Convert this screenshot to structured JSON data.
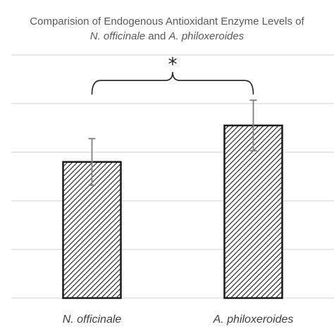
{
  "chart_data": {
    "type": "bar",
    "title_line1": "Comparision of Endogenous Antioxidant Enzyme Levels of",
    "title_line2": {
      "species1": "N. officinale",
      "connector": "and",
      "species2": "A. philoxeroides"
    },
    "categories": [
      "N. officinale",
      "A. philoxeroides"
    ],
    "values": [
      2.8,
      3.55
    ],
    "error": [
      0.48,
      0.52
    ],
    "ylim": [
      0,
      5
    ],
    "yticks": [
      0,
      1,
      2,
      3,
      4,
      5
    ],
    "y_tick_labels_shown": false,
    "grid": true,
    "significance_marker": "*",
    "bar_fill": "diagonal-hatch",
    "colors": {
      "bar_stroke": "#1a1a1a",
      "hatch": "#1a1a1a",
      "grid": "#d9d9d9",
      "error_bar": "#7f7f7f",
      "bracket": "#222222",
      "title": "#595959",
      "category_label": "#404040"
    }
  }
}
